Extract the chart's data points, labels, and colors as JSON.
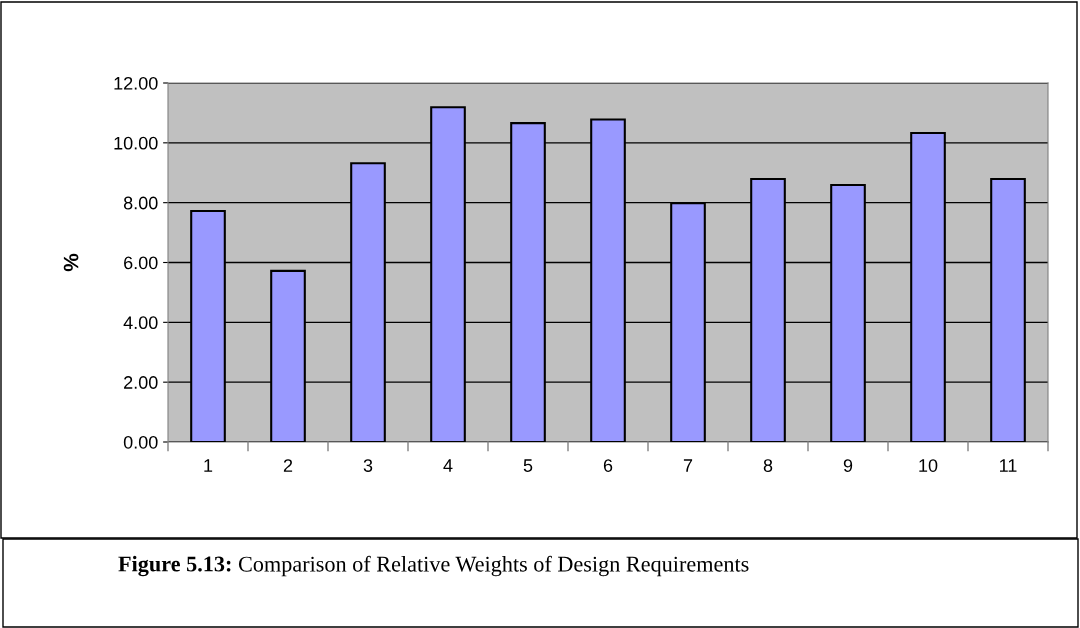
{
  "chart_data": {
    "type": "bar",
    "ylabel": "%",
    "categories": [
      "1",
      "2",
      "3",
      "4",
      "5",
      "6",
      "7",
      "8",
      "9",
      "10",
      "11"
    ],
    "values": [
      7.72,
      5.72,
      9.32,
      11.19,
      10.66,
      10.78,
      7.98,
      8.79,
      8.59,
      10.33,
      8.79
    ],
    "color": "#9999ff",
    "ylim": [
      0,
      12
    ],
    "yticks": [
      {
        "value": 0,
        "label": "0.00"
      },
      {
        "value": 2,
        "label": "2.00"
      },
      {
        "value": 4,
        "label": "4.00"
      },
      {
        "value": 6,
        "label": "6.00"
      },
      {
        "value": 8,
        "label": "8.00"
      },
      {
        "value": 10,
        "label": "10.00"
      },
      {
        "value": 12,
        "label": "12.00"
      }
    ],
    "grid": "y",
    "annotations": [
      "Figure 5.13: Comparison of Relative Weights of Design Requirements"
    ]
  }
}
